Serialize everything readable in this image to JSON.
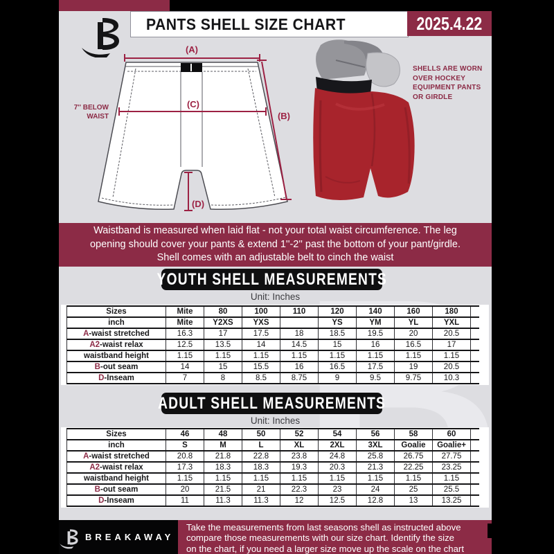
{
  "header": {
    "title": "PANTS SHELL SIZE CHART",
    "date": "2025.4.22"
  },
  "diagram": {
    "label_a": "(A)",
    "label_b": "(B)",
    "label_c": "(C)",
    "label_d": "(D)",
    "below_waist": [
      "7'' BELOW",
      "WAIST"
    ],
    "side_note": [
      "SHELLS ARE WORN",
      "OVER HOCKEY",
      "EQUIPMENT PANTS",
      "OR GIRDLE"
    ]
  },
  "info_band": {
    "lines": [
      "Waistband is measured when laid flat - not your total waist circumference. The leg",
      "opening should cover your pants & extend 1''-2'' past the bottom of your pant/girdle.",
      "Shell comes with an adjustable belt to cinch the waist"
    ]
  },
  "youth": {
    "banner": "YOUTH SHELL MEASUREMENTS",
    "unit": "Unit: Inches",
    "table": [
      {
        "prefix": "",
        "label": "Sizes",
        "header": true,
        "values": [
          "Mite",
          "80",
          "100",
          "110",
          "120",
          "140",
          "160",
          "180"
        ]
      },
      {
        "prefix": "",
        "label": "inch",
        "header": true,
        "values": [
          "Mite",
          "Y2XS",
          "YXS",
          "",
          "YS",
          "YM",
          "YL",
          "YXL"
        ]
      },
      {
        "prefix": "A",
        "label": "-waist stretched",
        "header": false,
        "values": [
          "16.3",
          "17",
          "17.5",
          "18",
          "18.5",
          "19.5",
          "20",
          "20.5"
        ]
      },
      {
        "prefix": "A2",
        "label": "-waist relax",
        "header": false,
        "values": [
          "12.5",
          "13.5",
          "14",
          "14.5",
          "15",
          "16",
          "16.5",
          "17"
        ]
      },
      {
        "prefix": "",
        "label": "waistband height",
        "header": false,
        "values": [
          "1.15",
          "1.15",
          "1.15",
          "1.15",
          "1.15",
          "1.15",
          "1.15",
          "1.15"
        ]
      },
      {
        "prefix": "B",
        "label": "-out seam",
        "header": false,
        "values": [
          "14",
          "15",
          "15.5",
          "16",
          "16.5",
          "17.5",
          "19",
          "20.5"
        ]
      },
      {
        "prefix": "D",
        "label": "-Inseam",
        "header": false,
        "values": [
          "7",
          "8",
          "8.5",
          "8.75",
          "9",
          "9.5",
          "9.75",
          "10.3"
        ]
      }
    ]
  },
  "adult": {
    "banner": "ADULT SHELL MEASUREMENTS",
    "unit": "Unit: Inches",
    "table": [
      {
        "prefix": "",
        "label": "Sizes",
        "header": true,
        "values": [
          "46",
          "48",
          "50",
          "52",
          "54",
          "56",
          "58",
          "60"
        ]
      },
      {
        "prefix": "",
        "label": "inch",
        "header": true,
        "values": [
          "S",
          "M",
          "L",
          "XL",
          "2XL",
          "3XL",
          "Goalie",
          "Goalie+"
        ]
      },
      {
        "prefix": "A",
        "label": "-waist stretched",
        "header": false,
        "values": [
          "20.8",
          "21.8",
          "22.8",
          "23.8",
          "24.8",
          "25.8",
          "26.75",
          "27.75"
        ]
      },
      {
        "prefix": "A2",
        "label": "-waist relax",
        "header": false,
        "values": [
          "17.3",
          "18.3",
          "18.3",
          "19.3",
          "20.3",
          "21.3",
          "22.25",
          "23.25"
        ]
      },
      {
        "prefix": "",
        "label": "waistband height",
        "header": false,
        "values": [
          "1.15",
          "1.15",
          "1.15",
          "1.15",
          "1.15",
          "1.15",
          "1.15",
          "1.15"
        ]
      },
      {
        "prefix": "B",
        "label": "-out seam",
        "header": false,
        "values": [
          "20",
          "21.5",
          "21",
          "22.3",
          "23",
          "24",
          "25",
          "25.5"
        ]
      },
      {
        "prefix": "D",
        "label": "-Inseam",
        "header": false,
        "values": [
          "11",
          "11.3",
          "11.3",
          "12",
          "12.5",
          "12.8",
          "13",
          "13.25"
        ]
      }
    ]
  },
  "watermark_letter": "B",
  "footer": {
    "brand": "BREAKAWAY",
    "lines": [
      "Take the measurements from last seasons shell as instructed above",
      "compare those measurements  with our size chart. Identify the size",
      "on the chart, if you need a larger size move up the scale on the chart"
    ]
  },
  "colors": {
    "maroon": "#8c2b46",
    "measure_line": "#9c2143",
    "pants_red": "#a8242c",
    "background_gray": "#dddde1",
    "banner_black": "#0f0f10"
  }
}
